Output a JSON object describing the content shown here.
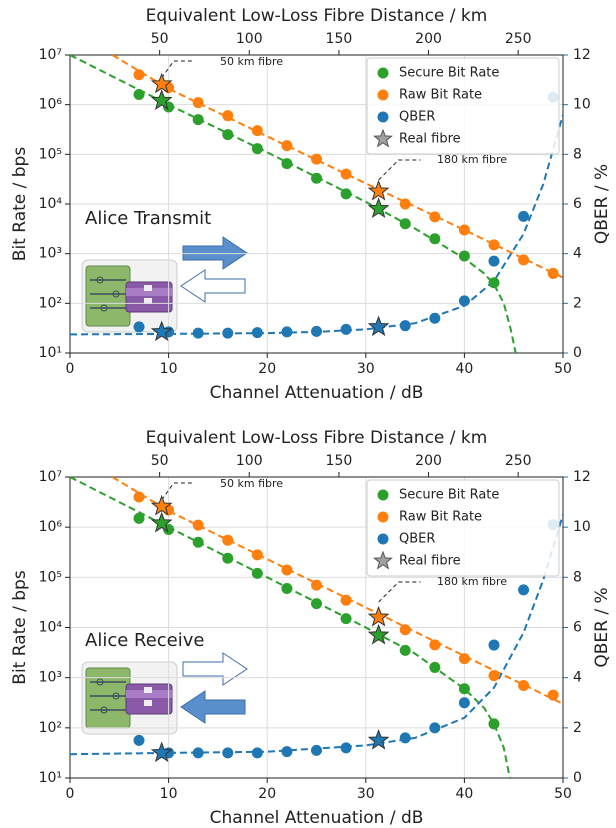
{
  "chart_data": [
    {
      "type": "scatter",
      "x2label": "Equivalent Low-Loss Fibre Distance / km",
      "xlabel": "Channel Attenuation / dB",
      "ylabel": "Bit Rate / bps",
      "y2label": "QBER / %",
      "xlim": [
        0,
        50
      ],
      "xticks": [
        0,
        10,
        20,
        30,
        40,
        50
      ],
      "x2lim": [
        0,
        275
      ],
      "x2ticks": [
        50,
        100,
        150,
        200,
        250
      ],
      "yscale": "log",
      "ylim": [
        10,
        10000000
      ],
      "yticks": [
        {
          "value": 10,
          "label": "10¹"
        },
        {
          "value": 100,
          "label": "10²"
        },
        {
          "value": 1000,
          "label": "10³"
        },
        {
          "value": 10000,
          "label": "10⁴"
        },
        {
          "value": 100000,
          "label": "10⁵"
        },
        {
          "value": 1000000,
          "label": "10⁶"
        },
        {
          "value": 10000000,
          "label": "10⁷"
        }
      ],
      "y2lim": [
        0,
        12
      ],
      "y2ticks": [
        0,
        2,
        4,
        6,
        8,
        10,
        12
      ],
      "y2color": "#1f77b4",
      "grid": true,
      "legend": "upper right",
      "annotations": [
        "50 km fibre",
        "180 km fibre",
        "Alice Transmit"
      ],
      "series": [
        {
          "name": "Secure Bit Rate",
          "color": "#2ca02c",
          "marker": "circle",
          "x": [
            7,
            10,
            13,
            16,
            19,
            22,
            25,
            28,
            34,
            37,
            40,
            43
          ],
          "values": [
            1600000,
            900000,
            500000,
            250000,
            130000,
            65000,
            33000,
            16000,
            4000,
            2000,
            900,
            260
          ]
        },
        {
          "name": "Raw Bit Rate",
          "color": "#ff7f0e",
          "marker": "circle",
          "x": [
            7,
            10,
            13,
            16,
            19,
            22,
            25,
            28,
            34,
            37,
            40,
            43,
            46,
            49
          ],
          "values": [
            4000000,
            2200000,
            1100000,
            600000,
            300000,
            150000,
            80000,
            40000,
            10000,
            5500,
            3000,
            1500,
            750,
            400
          ]
        },
        {
          "name": "QBER",
          "color": "#1f77b4",
          "marker": "circle",
          "axis": "y2",
          "x": [
            7,
            10,
            13,
            16,
            19,
            22,
            25,
            28,
            34,
            37,
            40,
            43,
            46,
            49
          ],
          "values": [
            1.05,
            0.85,
            0.8,
            0.8,
            0.82,
            0.85,
            0.87,
            0.95,
            1.1,
            1.4,
            2.1,
            3.7,
            5.5,
            10.3
          ]
        },
        {
          "name": "Real fibre",
          "color": "#a0a0a0",
          "marker": "star",
          "x": [],
          "values": []
        },
        {
          "color": "#2ca02c",
          "marker": "star",
          "x": [
            9.3,
            31.3
          ],
          "values": [
            1200000,
            8000
          ]
        },
        {
          "color": "#ff7f0e",
          "marker": "star",
          "x": [
            9.3,
            31.3
          ],
          "values": [
            2600000,
            18000
          ]
        },
        {
          "color": "#1f77b4",
          "marker": "star",
          "axis": "y2",
          "x": [
            9.3,
            31.3
          ],
          "values": [
            0.85,
            1.05
          ]
        },
        {
          "color": "#2ca02c",
          "marker": "dashed",
          "x": [
            0,
            10,
            20,
            30,
            35,
            40,
            42,
            43,
            44,
            44.7,
            45.2
          ],
          "values": [
            10000000,
            1000000,
            110000,
            11000,
            3200,
            800,
            400,
            240,
            100,
            30,
            10
          ]
        },
        {
          "color": "#ff7f0e",
          "marker": "dashed",
          "x": [
            4.3,
            10,
            20,
            30,
            40,
            50
          ],
          "values": [
            10000000,
            2100000,
            230000,
            26000,
            3000,
            330
          ]
        },
        {
          "color": "#1f77b4",
          "marker": "dashed",
          "axis": "y2",
          "x": [
            0,
            10,
            20,
            25,
            30,
            35,
            40,
            43,
            46,
            48,
            50
          ],
          "values": [
            0.75,
            0.77,
            0.8,
            0.85,
            0.95,
            1.2,
            1.9,
            2.9,
            4.8,
            6.8,
            9.6
          ]
        }
      ]
    },
    {
      "type": "scatter",
      "x2label": "Equivalent Low-Loss Fibre Distance / km",
      "xlabel": "Channel Attenuation / dB",
      "ylabel": "Bit Rate / bps",
      "y2label": "QBER / %",
      "xlim": [
        0,
        50
      ],
      "xticks": [
        0,
        10,
        20,
        30,
        40,
        50
      ],
      "x2lim": [
        0,
        275
      ],
      "x2ticks": [
        50,
        100,
        150,
        200,
        250
      ],
      "yscale": "log",
      "ylim": [
        10,
        10000000
      ],
      "yticks": [
        {
          "value": 10,
          "label": "10¹"
        },
        {
          "value": 100,
          "label": "10²"
        },
        {
          "value": 1000,
          "label": "10³"
        },
        {
          "value": 10000,
          "label": "10⁴"
        },
        {
          "value": 100000,
          "label": "10⁵"
        },
        {
          "value": 1000000,
          "label": "10⁶"
        },
        {
          "value": 10000000,
          "label": "10⁷"
        }
      ],
      "y2lim": [
        0,
        12
      ],
      "y2ticks": [
        0,
        2,
        4,
        6,
        8,
        10,
        12
      ],
      "y2color": "#1f77b4",
      "grid": true,
      "legend": "upper right",
      "annotations": [
        "50 km fibre",
        "180 km fibre",
        "Alice Receive"
      ],
      "series": [
        {
          "name": "Secure Bit Rate",
          "color": "#2ca02c",
          "marker": "circle",
          "x": [
            7,
            10,
            13,
            16,
            19,
            22,
            25,
            28,
            34,
            37,
            40,
            43
          ],
          "values": [
            1500000,
            900000,
            500000,
            240000,
            120000,
            60000,
            30000,
            15000,
            3500,
            1600,
            600,
            120
          ]
        },
        {
          "name": "Raw Bit Rate",
          "color": "#ff7f0e",
          "marker": "circle",
          "x": [
            7,
            10,
            13,
            16,
            19,
            22,
            25,
            28,
            34,
            37,
            40,
            43,
            46,
            49
          ],
          "values": [
            4000000,
            2200000,
            1100000,
            550000,
            280000,
            140000,
            70000,
            35000,
            9000,
            4500,
            2400,
            1100,
            700,
            450
          ]
        },
        {
          "name": "QBER",
          "color": "#1f77b4",
          "marker": "circle",
          "axis": "y2",
          "x": [
            7,
            10,
            13,
            16,
            19,
            22,
            25,
            28,
            34,
            37,
            40,
            43,
            46,
            49
          ],
          "values": [
            1.5,
            1.0,
            1.0,
            1.0,
            1.0,
            1.05,
            1.1,
            1.2,
            1.6,
            2.0,
            3.0,
            5.3,
            7.5,
            10.1
          ]
        },
        {
          "name": "Real fibre",
          "color": "#a0a0a0",
          "marker": "star",
          "x": [],
          "values": []
        },
        {
          "color": "#2ca02c",
          "marker": "star",
          "x": [
            9.3,
            31.3
          ],
          "values": [
            1200000,
            7000
          ]
        },
        {
          "color": "#ff7f0e",
          "marker": "star",
          "x": [
            9.3,
            31.3
          ],
          "values": [
            2600000,
            16000
          ]
        },
        {
          "color": "#1f77b4",
          "marker": "star",
          "axis": "y2",
          "x": [
            9.3,
            31.3
          ],
          "values": [
            1.0,
            1.5
          ]
        },
        {
          "color": "#2ca02c",
          "marker": "dashed",
          "x": [
            0,
            10,
            20,
            30,
            35,
            40,
            42,
            43,
            44,
            44.3,
            44.6
          ],
          "values": [
            10000000,
            1000000,
            100000,
            10000,
            3000,
            600,
            250,
            120,
            40,
            20,
            10
          ]
        },
        {
          "color": "#ff7f0e",
          "marker": "dashed",
          "x": [
            4.3,
            10,
            20,
            30,
            40,
            50
          ],
          "values": [
            10000000,
            2100000,
            230000,
            25000,
            2700,
            300
          ]
        },
        {
          "color": "#1f77b4",
          "marker": "dashed",
          "axis": "y2",
          "x": [
            0,
            10,
            20,
            30,
            35,
            40,
            43,
            46,
            48,
            50
          ],
          "values": [
            0.95,
            1.0,
            1.05,
            1.3,
            1.6,
            2.4,
            3.6,
            5.8,
            7.9,
            10.5
          ]
        }
      ]
    }
  ]
}
